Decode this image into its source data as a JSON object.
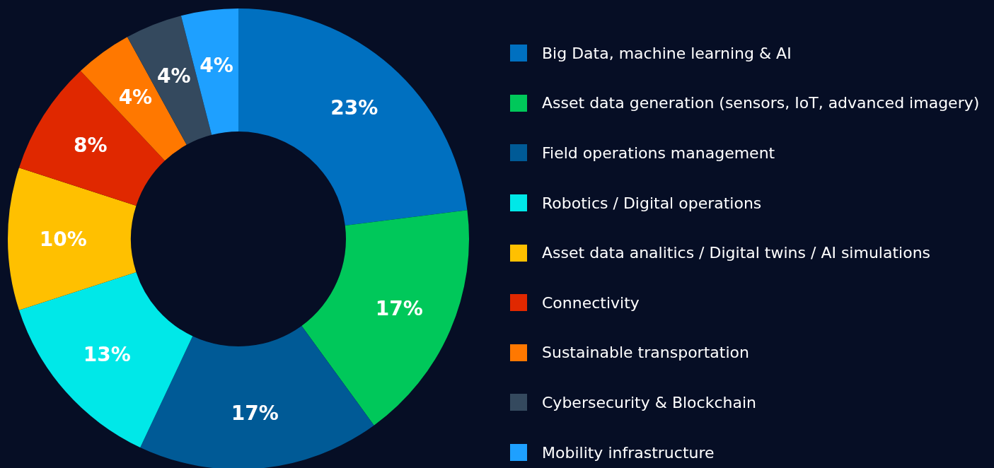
{
  "chart_data": {
    "type": "donut",
    "categories": [
      "Big Data, machine learning & AI",
      "Asset data generation (sensors, IoT, advanced imagery)",
      "Field operations management",
      "Robotics / Digital operations",
      "Asset data analitics / Digital twins / AI simulations",
      "Connectivity",
      "Sustainable transportation",
      "Cybersecurity & Blockchain",
      "Mobility infrastructure"
    ],
    "values": [
      23,
      17,
      17,
      13,
      10,
      8,
      4,
      4,
      4
    ],
    "value_labels": [
      "23%",
      "17%",
      "17%",
      "13%",
      "10%",
      "8%",
      "4%",
      "4%",
      "4%"
    ],
    "colors": [
      "#0070c0",
      "#00c85a",
      "#005a96",
      "#00e8e8",
      "#ffc000",
      "#e02800",
      "#ff7800",
      "#34495e",
      "#1ea0ff"
    ],
    "legend": "right"
  }
}
